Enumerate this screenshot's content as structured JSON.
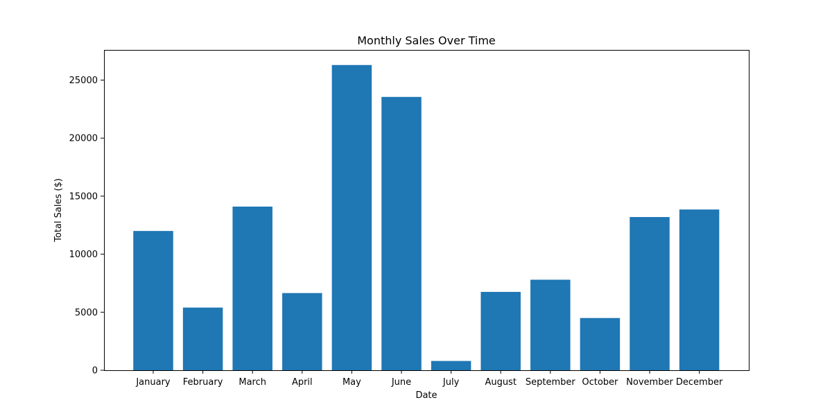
{
  "chart_data": {
    "type": "bar",
    "title": "Monthly Sales Over Time",
    "xlabel": "Date",
    "ylabel": "Total Sales ($)",
    "categories": [
      "January",
      "February",
      "March",
      "April",
      "May",
      "June",
      "July",
      "August",
      "September",
      "October",
      "November",
      "December"
    ],
    "values": [
      12000,
      5400,
      14100,
      6650,
      26300,
      23550,
      800,
      6750,
      7800,
      4500,
      13200,
      13850
    ],
    "ylim": [
      0,
      27600
    ],
    "yticks": [
      0,
      5000,
      10000,
      15000,
      20000,
      25000
    ],
    "grid": false,
    "legend": "none",
    "bar_color": "#1f77b4"
  }
}
